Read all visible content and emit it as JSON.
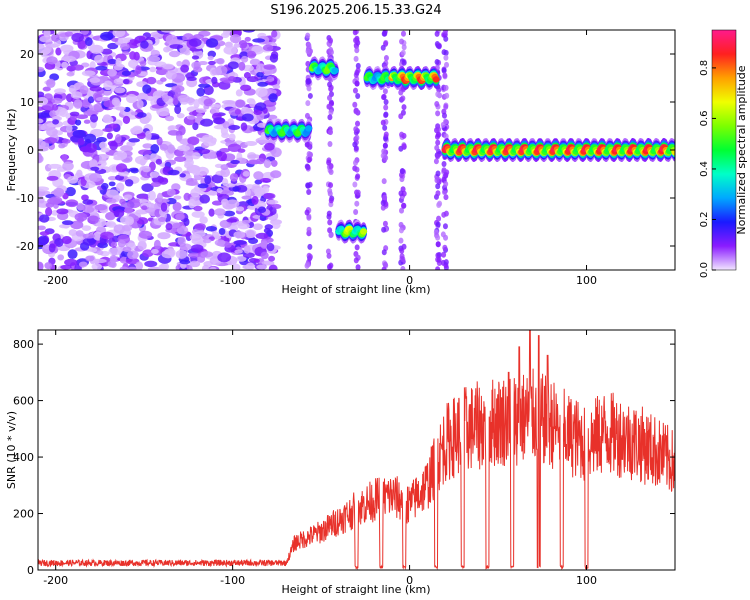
{
  "title": "S196.2025.206.15.33.G24",
  "chart_data": [
    {
      "type": "heatmap",
      "title": "S196.2025.206.15.33.G24",
      "xlabel": "Height of straight line (km)",
      "ylabel": "Frequency (Hz)",
      "xlim": [
        -210,
        150
      ],
      "ylim": [
        -25,
        25
      ],
      "xticks": [
        -200,
        -100,
        0,
        100
      ],
      "xtick_labels": [
        "-200",
        "-100",
        "0",
        "100"
      ],
      "yticks": [
        -20,
        -10,
        0,
        10,
        20
      ],
      "ytick_labels": [
        "-20",
        "-10",
        "0",
        "10",
        "20"
      ],
      "grid": false,
      "colormap": "rainbow (magenta-white to red)",
      "colorbar": {
        "label": "Normalized spectral amplitude",
        "ticks": [
          0.0,
          0.2,
          0.4,
          0.6,
          0.8
        ],
        "tick_labels": [
          "0.0",
          "0.2",
          "0.4",
          "0.6",
          "0.8"
        ],
        "range": [
          0.0,
          0.95
        ]
      },
      "noise_region_x": [
        -210,
        -75
      ],
      "signal_tracks": [
        {
          "x0": -80,
          "x1": -57,
          "freq": 4,
          "peak_amplitude": 0.55
        },
        {
          "x0": -55,
          "x1": -42,
          "freq": 17,
          "peak_amplitude": 0.6
        },
        {
          "x0": -40,
          "x1": -26,
          "freq": -17,
          "peak_amplitude": 0.7
        },
        {
          "x0": -24,
          "x1": -12,
          "freq": 15,
          "peak_amplitude": 0.55
        },
        {
          "x0": -10,
          "x1": 15,
          "freq": 15,
          "peak_amplitude": 0.9
        },
        {
          "x0": 20,
          "x1": 150,
          "freq": 0,
          "peak_amplitude": 0.95
        }
      ]
    },
    {
      "type": "line",
      "xlabel": "Height of straight line (km)",
      "ylabel": "SNR (10 * v/v)",
      "xlim": [
        -210,
        150
      ],
      "ylim": [
        0,
        850
      ],
      "xticks": [
        -200,
        -100,
        0,
        100
      ],
      "xtick_labels": [
        "-200",
        "-100",
        "0",
        "100"
      ],
      "yticks": [
        0,
        200,
        400,
        600,
        800
      ],
      "ytick_labels": [
        "0",
        "200",
        "400",
        "600",
        "800"
      ],
      "grid": false,
      "series_color": "#e8312a",
      "envelope": {
        "x": [
          -210,
          -70,
          -65,
          -50,
          -40,
          -30,
          -20,
          -10,
          0,
          10,
          20,
          30,
          40,
          50,
          60,
          70,
          80,
          90,
          100,
          110,
          120,
          130,
          140,
          150
        ],
        "y": [
          25,
          25,
          120,
          170,
          220,
          270,
          310,
          330,
          290,
          380,
          560,
          620,
          640,
          660,
          670,
          680,
          650,
          600,
          560,
          610,
          590,
          560,
          520,
          470
        ]
      },
      "dropouts_x": [
        -30,
        -16,
        -3,
        15,
        30,
        44,
        58,
        73,
        86,
        100
      ],
      "spikes": [
        {
          "x": 62,
          "y": 790
        },
        {
          "x": 68,
          "y": 850
        },
        {
          "x": 73,
          "y": 830
        },
        {
          "x": 78,
          "y": 760
        },
        {
          "x": 56,
          "y": 700
        }
      ]
    }
  ]
}
